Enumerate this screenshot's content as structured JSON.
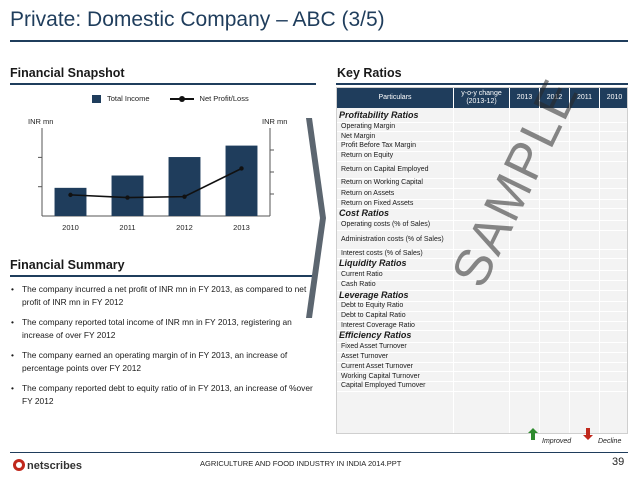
{
  "title": "Private: Domestic Company – ABC (3/5)",
  "snapshot": {
    "heading": "Financial Snapshot",
    "legend_bar": "Total Income",
    "legend_line": "Net Profit/Loss",
    "left_unit": "INR mn",
    "right_unit": "INR mn"
  },
  "chart_data": {
    "type": "bar",
    "categories": [
      "2010",
      "2011",
      "2012",
      "2013"
    ],
    "series": [
      {
        "name": "Total Income",
        "values": [
          32,
          46,
          67,
          80
        ]
      },
      {
        "name": "Net Profit/Loss",
        "values": [
          24,
          21,
          22,
          54
        ]
      }
    ],
    "title": "",
    "xlabel": "",
    "ylabel": "INR mn",
    "ylim": [
      0,
      100
    ],
    "y2label": "INR mn",
    "y2lim": [
      0,
      100
    ],
    "grid": false,
    "legend": "top",
    "colors": {
      "bar": "#1f3d5c",
      "line": "#111111"
    }
  },
  "summary": {
    "heading": "Financial Summary",
    "items": [
      "The company incurred a net profit of INR mn in FY 2013, as compared to net profit of INR mn in FY 2012",
      "The company reported total income of INR mn in FY 2013, registering an increase of over FY 2012",
      "The company earned an operating margin of  in FY 2013, an increase of percentage points over FY 2012",
      "The company reported debt to equity ratio of in FY 2013, an increase of %over FY 2012"
    ]
  },
  "ratios": {
    "heading": "Key Ratios",
    "columns": [
      "Particulars",
      "y-o-y change (2013-12)",
      "2013",
      "2012",
      "2011",
      "2010"
    ],
    "rows": [
      {
        "label": "Profitability Ratios",
        "type": "cat"
      },
      {
        "label": "Operating Margin",
        "type": "item"
      },
      {
        "label": "Net Margin",
        "type": "item"
      },
      {
        "label": "Profit Before Tax Margin",
        "type": "item"
      },
      {
        "label": "Return on Equity",
        "type": "item"
      },
      {
        "label": "Return on Capital Employed",
        "type": "item"
      },
      {
        "label": "Return on Working Capital",
        "type": "item"
      },
      {
        "label": "Return on Assets",
        "type": "item"
      },
      {
        "label": "Return on Fixed Assets",
        "type": "item"
      },
      {
        "label": "Cost Ratios",
        "type": "cat"
      },
      {
        "label": "Operating costs (% of Sales)",
        "type": "item"
      },
      {
        "label": "Administration costs (% of Sales)",
        "type": "item"
      },
      {
        "label": "Interest costs (% of Sales)",
        "type": "item"
      },
      {
        "label": "Liquidity Ratios",
        "type": "cat"
      },
      {
        "label": "Current Ratio",
        "type": "item"
      },
      {
        "label": "Cash Ratio",
        "type": "item"
      },
      {
        "label": "Leverage Ratios",
        "type": "cat"
      },
      {
        "label": "Debt to Equity Ratio",
        "type": "item"
      },
      {
        "label": "Debt to Capital Ratio",
        "type": "item"
      },
      {
        "label": "Interest Coverage Ratio",
        "type": "item"
      },
      {
        "label": "Efficiency Ratios",
        "type": "cat"
      },
      {
        "label": "Fixed Asset Turnover",
        "type": "item"
      },
      {
        "label": "Asset Turnover",
        "type": "item"
      },
      {
        "label": "Current Asset Turnover",
        "type": "item"
      },
      {
        "label": "Working Capital Turnover",
        "type": "item"
      },
      {
        "label": "Capital Employed Turnover",
        "type": "item"
      }
    ],
    "watermark": "SAMPLE",
    "legend_improved": "Improved",
    "legend_decline": "Decline",
    "colors": {
      "improved": "#2e8b2e",
      "decline": "#c0281c"
    }
  },
  "footer": {
    "logo_text": "netscribes",
    "text": "AGRICULTURE AND FOOD INDUSTRY IN INDIA 2014.PPT",
    "page": "39"
  }
}
